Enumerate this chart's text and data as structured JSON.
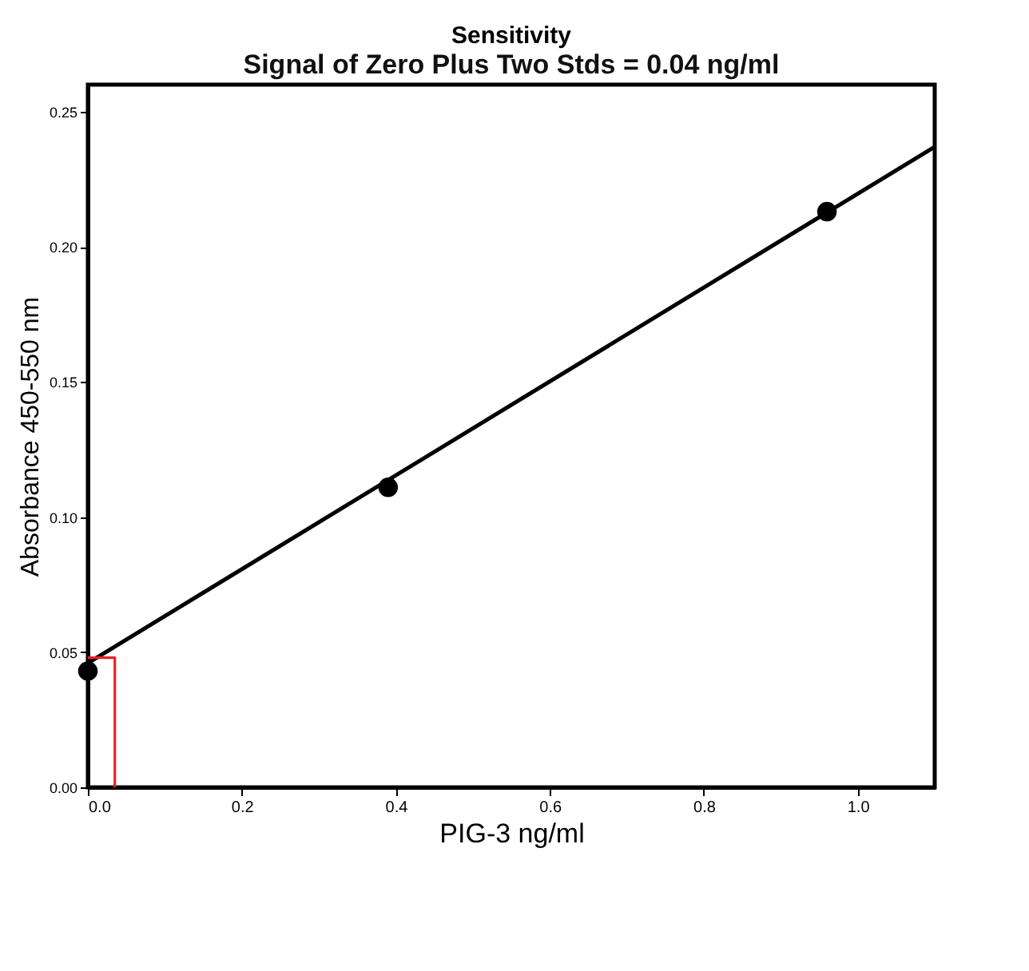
{
  "chart_data": {
    "type": "scatter",
    "title": "Sensitivity",
    "subtitle": "Signal of Zero Plus Two Stds = 0.04 ng/ml",
    "xlabel": "PIG-3 ng/ml",
    "ylabel": "Absorbance 450-550 nm",
    "series": [
      {
        "color": "#000000",
        "x": [
          0,
          0.39,
          0.96
        ],
        "values": [
          0.043,
          0.111,
          0.213
        ],
        "marker": "circle"
      },
      {
        "type": "line",
        "color": "#000000",
        "x": [
          0,
          1.1
        ],
        "values": [
          0.046,
          0.237
        ],
        "marker": "none"
      },
      {
        "type": "line",
        "color": "#e8202a",
        "x": [
          0,
          0.035,
          0.035
        ],
        "values": [
          0.048,
          0.048,
          0
        ],
        "marker": "none"
      }
    ],
    "xlim": [
      0,
      1.1
    ],
    "ylim": [
      0,
      0.26
    ],
    "xticks": [
      {
        "value": 0,
        "label": "0.0"
      },
      0.2,
      0.4,
      0.6,
      0.8,
      {
        "value": 1,
        "label": "1.0"
      }
    ],
    "yticks": [
      {
        "value": 0,
        "label": "0.00"
      },
      0.05,
      {
        "value": 0.1,
        "label": "0.10"
      },
      0.15,
      {
        "value": 0.2,
        "label": "0.20"
      },
      0.25
    ],
    "grid": false
  }
}
